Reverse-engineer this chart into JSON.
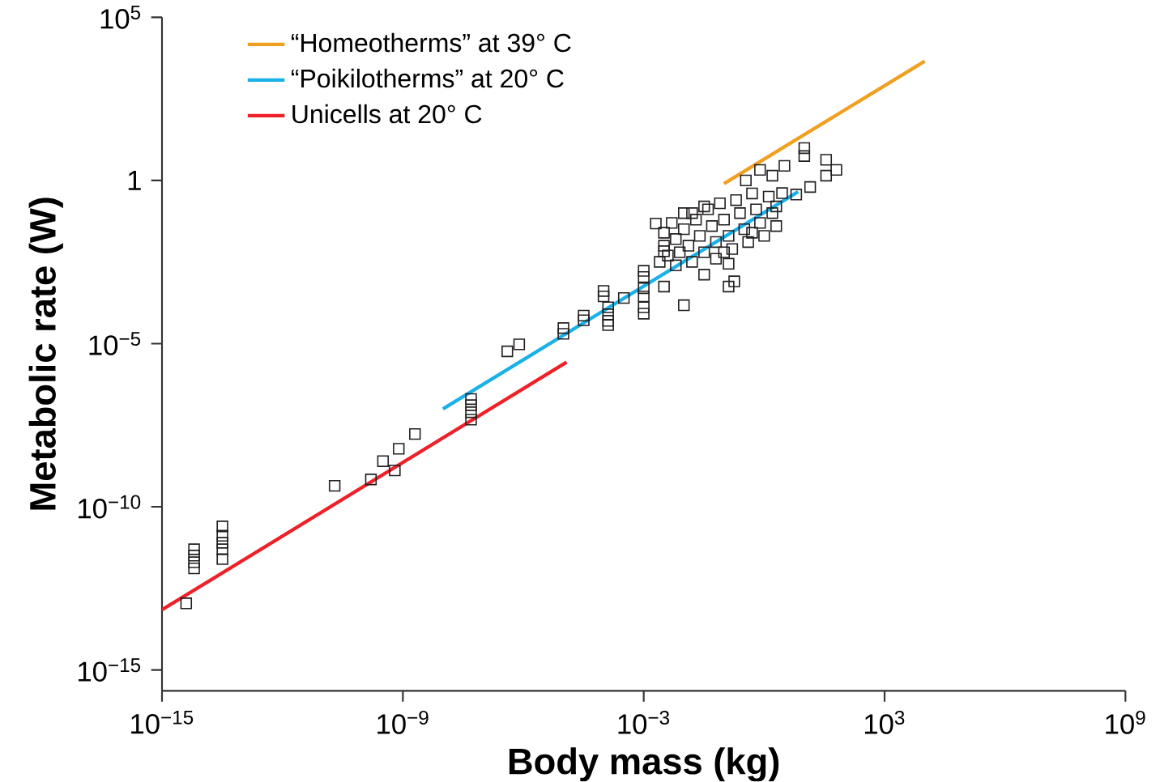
{
  "chart_data": {
    "type": "scatter",
    "xlabel": "Body mass (kg)",
    "ylabel": "Metabolic rate (W)",
    "log": "xy",
    "legend": "top left",
    "grid": false,
    "xlim": [
      1e-15,
      1000000000.0
    ],
    "ylim": [
      2.3e-16,
      100000.0
    ],
    "xticks": [
      {
        "value": 1e-15,
        "label": "10$^{−15}$"
      },
      {
        "value": 1e-09,
        "label": "10$^{−9}$"
      },
      {
        "value": 0.001,
        "label": "10$^{−3}$"
      },
      {
        "value": 1000.0,
        "label": "10$^{3}$"
      },
      {
        "value": 1000000000.0,
        "label": "10$^{9}$"
      }
    ],
    "yticks": [
      {
        "value": 1e-15,
        "label": "10$^{−15}$"
      },
      {
        "value": 1e-10,
        "label": "10$^{−10}$"
      },
      {
        "value": 1e-05,
        "label": "10$^{−5}$"
      },
      1,
      {
        "value": 100000.0,
        "label": "10$^{5}$"
      }
    ],
    "series": [
      {
        "name": "“Homeotherms” at 39° C",
        "type": "line",
        "color": "#f0a020",
        "marker": "none",
        "x": [
          0.1,
          10000.0
        ],
        "values": [
          0.8,
          4500
        ]
      },
      {
        "name": "“Poikilotherms” at 20° C",
        "type": "line",
        "color": "#1ab0e8",
        "marker": "none",
        "x": [
          1e-08,
          7
        ],
        "values": [
          1e-07,
          0.45
        ]
      },
      {
        "name": "Unicells at 20° C",
        "type": "line",
        "color": "#ee2028",
        "marker": "none",
        "x": [
          1e-15,
          1.2e-05
        ],
        "values": [
          7e-14,
          2.7e-06
        ]
      },
      {
        "color": "#231f20",
        "marker": "square",
        "x": [
          4e-15,
          6.3e-15,
          6.3e-15,
          6.3e-15,
          6.3e-15,
          3.2e-14,
          3.2e-14,
          3.2e-14,
          3.2e-14,
          3.2e-14,
          2e-11,
          1.6e-10,
          3.2e-10,
          6.3e-10,
          7.9e-10,
          2e-09,
          5e-08,
          5e-08,
          5e-08,
          5e-08,
          4e-07,
          7.9e-07,
          1e-05,
          1e-05,
          3.2e-05,
          3.2e-05,
          0.0001,
          0.0001,
          0.00013,
          0.00013,
          0.00013,
          0.00013,
          0.00032,
          0.001,
          0.001,
          0.001,
          0.001,
          0.001,
          0.001,
          0.0032,
          0.0032,
          0.002,
          0.01,
          0.032,
          0.13,
          0.18,
          0.13,
          3.2,
          10,
          10,
          35,
          35,
          63,
          14,
          6.3,
          0.79,
          1.6,
          2.8,
          0.35,
          2,
          0.0032,
          0.0032,
          0.004,
          0.005,
          0.0063,
          0.0079,
          0.01,
          0.01,
          0.013,
          0.016,
          0.02,
          0.025,
          0.032,
          0.04,
          0.05,
          0.063,
          0.063,
          0.079,
          0.1,
          0.13,
          0.16,
          0.2,
          0.25,
          0.32,
          0.4,
          0.5,
          0.63,
          0.79,
          1,
          1.3,
          1.6,
          2,
          0.016,
          0.032,
          0.0025,
          0.0063,
          0.1,
          0.5
        ],
        "values": [
          1.1e-13,
          5e-12,
          3.2e-12,
          2e-12,
          1.3e-12,
          2.5e-11,
          1.3e-11,
          7.9e-12,
          5e-12,
          2.5e-12,
          4.4e-10,
          6.9e-10,
          2.5e-09,
          1.3e-09,
          6e-09,
          1.7e-08,
          2e-07,
          1.3e-07,
          7.9e-08,
          4.7e-08,
          5.8e-06,
          9.5e-06,
          3e-05,
          2e-05,
          7.2e-05,
          5.2e-05,
          0.00041,
          0.00028,
          0.00013,
          7.9e-05,
          5e-05,
          3.7e-05,
          0.00025,
          0.0017,
          0.0011,
          0.0005,
          0.00028,
          0.00013,
          8.3e-05,
          0.00056,
          0.0068,
          0.048,
          0.00015,
          0.0013,
          0.0028,
          0.00081,
          0.00056,
          2.8,
          9.8,
          5.6,
          4.3,
          1.4,
          2.1,
          0.63,
          0.37,
          2.1,
          1.4,
          0.41,
          1,
          0.16,
          0.025,
          0.01,
          0.005,
          0.05,
          0.016,
          0.0063,
          0.1,
          0.032,
          0.01,
          0.0032,
          0.063,
          0.02,
          0.0063,
          0.13,
          0.04,
          0.013,
          0.004,
          0.2,
          0.063,
          0.02,
          0.0079,
          0.25,
          0.1,
          0.032,
          0.013,
          0.4,
          0.13,
          0.05,
          0.02,
          0.32,
          0.1,
          0.04,
          0.1,
          0.16,
          0.0032,
          0.0025,
          0.0063,
          0.025
        ]
      }
    ]
  }
}
